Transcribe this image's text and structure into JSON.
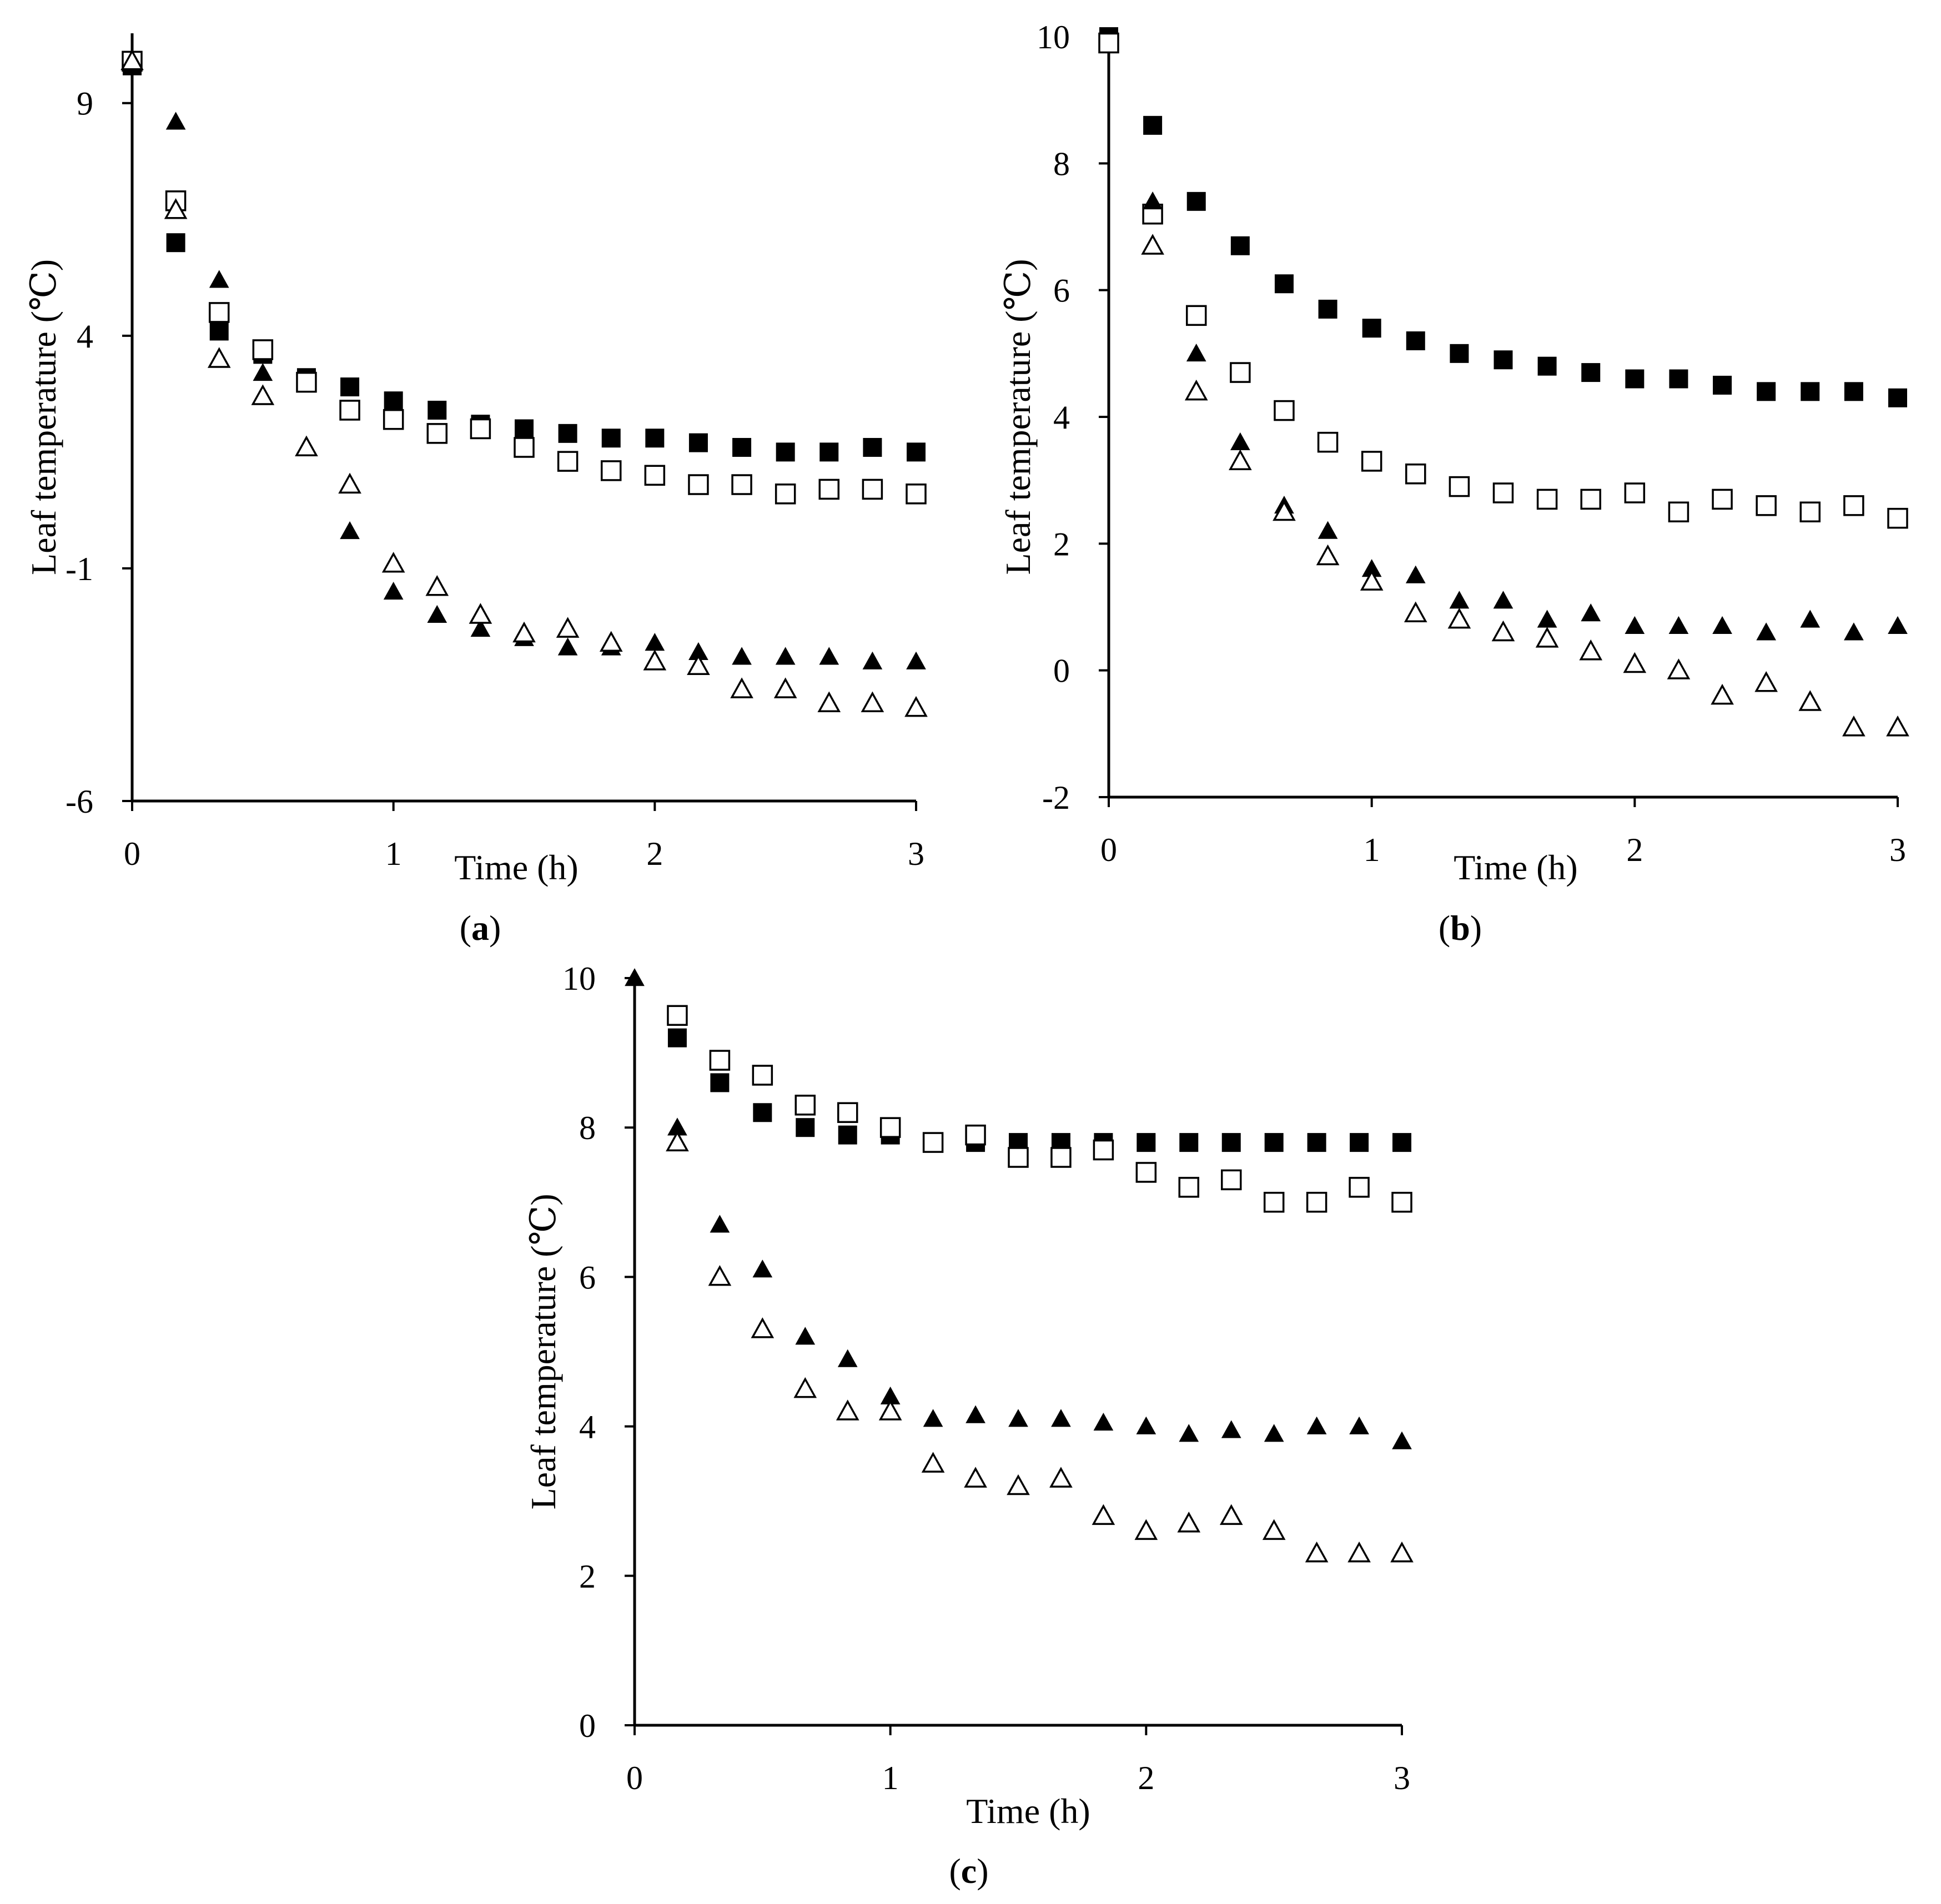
{
  "legend_markers": {
    "filled_square": "filled-square",
    "open_square": "open-square",
    "filled_triangle": "filled-triangle",
    "open_triangle": "open-triangle"
  },
  "chart_data": [
    {
      "type": "scatter",
      "panel": "a",
      "label_open": "(",
      "label_letter": "a",
      "label_close": ")",
      "xlabel": "Time (h)",
      "ylabel": "Leaf temperature (℃)",
      "xlim": [
        0,
        3
      ],
      "ylim": [
        -6,
        10.5
      ],
      "xticks": [
        "0",
        "1",
        "2",
        "3"
      ],
      "yticks": [
        {
          "value": -6,
          "label": "-6"
        },
        {
          "value": -1,
          "label": "-1"
        },
        {
          "value": 4,
          "label": "4"
        },
        {
          "value": 9,
          "label": "9"
        }
      ],
      "x": [
        0,
        0.167,
        0.333,
        0.5,
        0.667,
        0.833,
        1.0,
        1.167,
        1.333,
        1.5,
        1.667,
        1.833,
        2.0,
        2.167,
        2.333,
        2.5,
        2.667,
        2.833,
        3.0
      ],
      "series": [
        {
          "name": "filled-square",
          "marker": "filled-square",
          "values": [
            9.8,
            6.0,
            4.1,
            3.6,
            3.1,
            2.9,
            2.6,
            2.4,
            2.1,
            2.0,
            1.9,
            1.8,
            1.8,
            1.7,
            1.6,
            1.5,
            1.5,
            1.6,
            1.5
          ]
        },
        {
          "name": "open-square",
          "marker": "open-square",
          "values": [
            9.9,
            6.9,
            4.5,
            3.7,
            3.0,
            2.4,
            2.2,
            1.9,
            2.0,
            1.6,
            1.3,
            1.1,
            1.0,
            0.8,
            0.8,
            0.6,
            0.7,
            0.7,
            0.6
          ]
        },
        {
          "name": "filled-triangle",
          "marker": "filled-triangle",
          "values": [
            9.9,
            8.6,
            5.2,
            3.2,
            1.6,
            -0.2,
            -1.5,
            -2.0,
            -2.3,
            -2.5,
            -2.7,
            -2.7,
            -2.6,
            -2.8,
            -2.9,
            -2.9,
            -2.9,
            -3.0,
            -3.0
          ]
        },
        {
          "name": "open-triangle",
          "marker": "open-triangle",
          "values": [
            9.9,
            6.7,
            3.5,
            2.7,
            1.6,
            0.8,
            -0.9,
            -1.4,
            -2.0,
            -2.4,
            -2.3,
            -2.6,
            -3.0,
            -3.1,
            -3.6,
            -3.6,
            -3.9,
            -3.9,
            -4.0
          ]
        }
      ]
    },
    {
      "type": "scatter",
      "panel": "b",
      "label_open": "(",
      "label_letter": "b",
      "label_close": ")",
      "xlabel": "Time (h)",
      "ylabel": "Leaf temperature (℃)",
      "xlim": [
        0,
        3
      ],
      "ylim": [
        -2,
        10
      ],
      "xticks": [
        "0",
        "1",
        "2",
        "3"
      ],
      "yticks": [
        {
          "value": -2,
          "label": "-2"
        },
        {
          "value": 0,
          "label": "0"
        },
        {
          "value": 2,
          "label": "2"
        },
        {
          "value": 4,
          "label": "4"
        },
        {
          "value": 6,
          "label": "6"
        },
        {
          "value": 8,
          "label": "8"
        },
        {
          "value": 10,
          "label": "10"
        }
      ],
      "x": [
        0,
        0.167,
        0.333,
        0.5,
        0.667,
        0.833,
        1.0,
        1.167,
        1.333,
        1.5,
        1.667,
        1.833,
        2.0,
        2.167,
        2.333,
        2.5,
        2.667,
        2.833,
        3.0
      ],
      "series": [
        {
          "name": "filled-square",
          "marker": "filled-square",
          "values": [
            10.0,
            8.6,
            7.4,
            6.7,
            6.1,
            5.7,
            5.4,
            5.2,
            5.0,
            4.9,
            4.8,
            4.7,
            4.6,
            4.6,
            4.5,
            4.4,
            4.4,
            4.4,
            4.3
          ]
        },
        {
          "name": "open-square",
          "marker": "open-square",
          "values": [
            9.9,
            7.2,
            5.6,
            4.7,
            4.1,
            3.6,
            3.3,
            3.1,
            2.9,
            2.8,
            2.7,
            2.7,
            2.8,
            2.5,
            2.7,
            2.6,
            2.5,
            2.6,
            2.4
          ]
        },
        {
          "name": "filled-triangle",
          "marker": "filled-triangle",
          "values": [
            null,
            7.4,
            5.0,
            3.6,
            2.6,
            2.2,
            1.6,
            1.5,
            1.1,
            1.1,
            0.8,
            0.9,
            0.7,
            0.7,
            0.7,
            0.6,
            0.8,
            0.6,
            0.7
          ]
        },
        {
          "name": "open-triangle",
          "marker": "open-triangle",
          "values": [
            null,
            6.7,
            4.4,
            3.3,
            2.5,
            1.8,
            1.4,
            0.9,
            0.8,
            0.6,
            0.5,
            0.3,
            0.1,
            0.0,
            -0.4,
            -0.2,
            -0.5,
            -0.9,
            -0.9
          ]
        }
      ]
    },
    {
      "type": "scatter",
      "panel": "c",
      "label_open": "(",
      "label_letter": "c",
      "label_close": ")",
      "xlabel": "Time (h)",
      "ylabel": "Leaf temperature (℃)",
      "xlim": [
        0,
        3
      ],
      "ylim": [
        0,
        10
      ],
      "xticks": [
        "0",
        "1",
        "2",
        "3"
      ],
      "yticks": [
        {
          "value": 0,
          "label": "0"
        },
        {
          "value": 2,
          "label": "2"
        },
        {
          "value": 4,
          "label": "4"
        },
        {
          "value": 6,
          "label": "6"
        },
        {
          "value": 8,
          "label": "8"
        },
        {
          "value": 10,
          "label": "10"
        }
      ],
      "x": [
        0,
        0.167,
        0.333,
        0.5,
        0.667,
        0.833,
        1.0,
        1.167,
        1.333,
        1.5,
        1.667,
        1.833,
        2.0,
        2.167,
        2.333,
        2.5,
        2.667,
        2.833,
        3.0
      ],
      "series": [
        {
          "name": "filled-square",
          "marker": "filled-square",
          "values": [
            null,
            9.2,
            8.6,
            8.2,
            8.0,
            7.9,
            7.9,
            7.8,
            7.8,
            7.8,
            7.8,
            7.8,
            7.8,
            7.8,
            7.8,
            7.8,
            7.8,
            7.8,
            7.8
          ]
        },
        {
          "name": "open-square",
          "marker": "open-square",
          "values": [
            null,
            9.5,
            8.9,
            8.7,
            8.3,
            8.2,
            8.0,
            7.8,
            7.9,
            7.6,
            7.6,
            7.7,
            7.4,
            7.2,
            7.3,
            7.0,
            7.0,
            7.2,
            7.0
          ]
        },
        {
          "name": "filled-triangle",
          "marker": "filled-triangle",
          "values": [
            10.0,
            8.0,
            6.7,
            6.1,
            5.2,
            4.9,
            4.4,
            4.1,
            4.15,
            4.1,
            4.1,
            4.05,
            4.0,
            3.9,
            3.95,
            3.9,
            4.0,
            4.0,
            3.8
          ]
        },
        {
          "name": "open-triangle",
          "marker": "open-triangle",
          "values": [
            null,
            7.8,
            6.0,
            5.3,
            4.5,
            4.2,
            4.2,
            3.5,
            3.3,
            3.2,
            3.3,
            2.8,
            2.6,
            2.7,
            2.8,
            2.6,
            2.3,
            2.3,
            2.3
          ]
        }
      ]
    }
  ]
}
